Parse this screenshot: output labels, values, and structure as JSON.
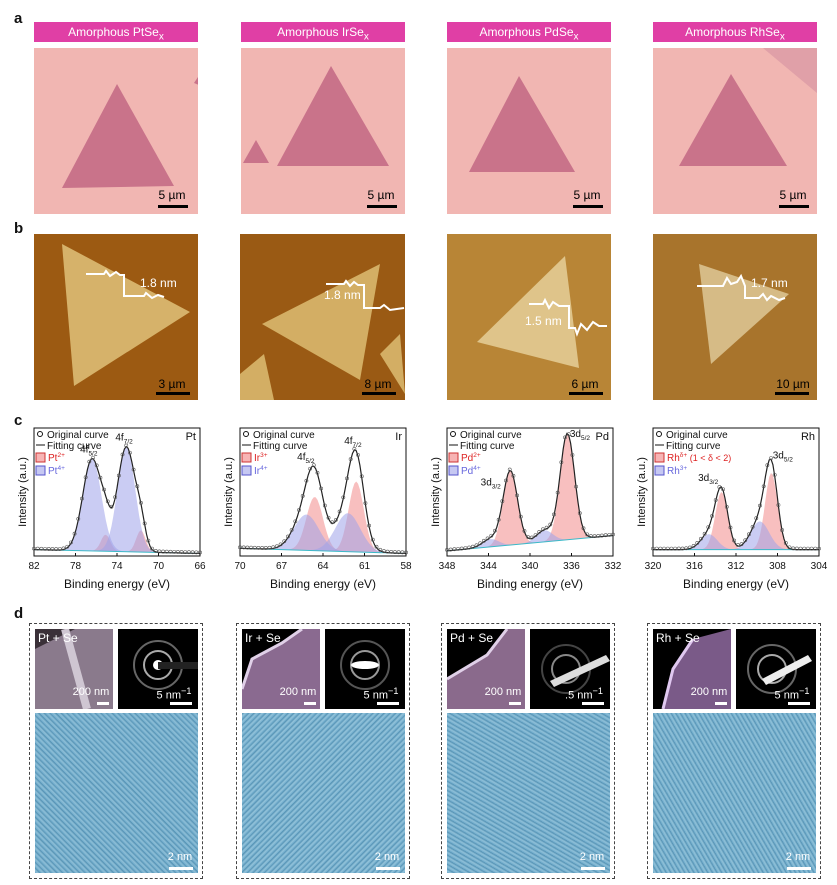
{
  "figure": {
    "panel_labels": [
      "a",
      "b",
      "c",
      "d"
    ],
    "row_a": {
      "samples": [
        {
          "banner": "Amorphous PtSe",
          "sub": "x",
          "scale": "5 µm"
        },
        {
          "banner": "Amorphous IrSe",
          "sub": "x",
          "scale": "5 µm"
        },
        {
          "banner": "Amorphous PdSe",
          "sub": "x",
          "scale": "5 µm"
        },
        {
          "banner": "Amorphous RhSe",
          "sub": "x",
          "scale": "5 µm"
        }
      ]
    },
    "row_b": {
      "samples": [
        {
          "height": "1.8 nm",
          "scale": "3 µm"
        },
        {
          "height": "1.8 nm",
          "scale": "8 µm"
        },
        {
          "height": "1.5 nm",
          "scale": "6 µm"
        },
        {
          "height": "1.7 nm",
          "scale": "10 µm"
        }
      ]
    },
    "row_d": {
      "samples": [
        {
          "tag": "Pt + Se",
          "sem_scale": "200 nm",
          "saed_scale": "5 nm",
          "saed_sup": "−1",
          "hr_scale": "2 nm"
        },
        {
          "tag": "Ir + Se",
          "sem_scale": "200 nm",
          "saed_scale": "5 nm",
          "saed_sup": "−1",
          "hr_scale": "2 nm"
        },
        {
          "tag": "Pd + Se",
          "sem_scale": "200 nm",
          "saed_scale": ".5 nm",
          "saed_sup": "−1",
          "hr_scale": "2 nm"
        },
        {
          "tag": "Rh + Se",
          "sem_scale": "200 nm",
          "saed_scale": "5 nm",
          "saed_sup": "−1",
          "hr_scale": "2 nm"
        }
      ]
    }
  },
  "chart_data": [
    {
      "type": "line",
      "element": "Pt",
      "xlabel": "Binding energy (eV)",
      "ylabel": "Intensity (a.u.)",
      "xlim": [
        82,
        66
      ],
      "reversed": true,
      "xticks": [
        82,
        78,
        74,
        70,
        66
      ],
      "legend": {
        "original": "Original curve",
        "fitting": "Fitting curve",
        "ox1": "Pt",
        "ox1_sup": "2+",
        "ox2": "Pt",
        "ox2_sup": "4+"
      },
      "peak_labels": [
        {
          "text": "4f",
          "sub": "5/2",
          "x": 76.4
        },
        {
          "text": "4f",
          "sub": "7/2",
          "x": 73.0
        }
      ],
      "series": [
        {
          "name": "Pt2+",
          "peaks": [
            {
              "center": 75.1,
              "height": 0.13,
              "width": 0.45
            },
            {
              "center": 71.7,
              "height": 0.17,
              "width": 0.45
            }
          ]
        },
        {
          "name": "Pt4+",
          "peaks": [
            {
              "center": 76.4,
              "height": 0.72,
              "width": 0.9
            },
            {
              "center": 73.1,
              "height": 0.82,
              "width": 0.85
            }
          ]
        }
      ],
      "baseline": [
        0.05,
        0.02
      ]
    },
    {
      "type": "line",
      "element": "Ir",
      "xlabel": "Binding energy (eV)",
      "ylabel": "Intensity (a.u.)",
      "xlim": [
        70,
        58
      ],
      "reversed": true,
      "xticks": [
        70,
        67,
        64,
        61,
        58
      ],
      "legend": {
        "original": "Original curve",
        "fitting": "Fitting curve",
        "ox1": "Ir",
        "ox1_sup": "3+",
        "ox2": "Ir",
        "ox2_sup": "4+"
      },
      "peak_labels": [
        {
          "text": "4f",
          "sub": "5/2",
          "x": 65.0
        },
        {
          "text": "4f",
          "sub": "7/2",
          "x": 61.6
        }
      ],
      "series": [
        {
          "name": "Ir3+",
          "peaks": [
            {
              "center": 64.6,
              "height": 0.42,
              "width": 0.6
            },
            {
              "center": 61.6,
              "height": 0.55,
              "width": 0.55
            }
          ]
        },
        {
          "name": "Ir4+",
          "peaks": [
            {
              "center": 65.2,
              "height": 0.28,
              "width": 0.9
            },
            {
              "center": 62.2,
              "height": 0.3,
              "width": 0.9
            }
          ]
        }
      ],
      "baseline": [
        0.06,
        0.02
      ]
    },
    {
      "type": "line",
      "element": "Pd",
      "xlabel": "Binding energy (eV)",
      "ylabel": "Intensity (a.u.)",
      "xlim": [
        348,
        332
      ],
      "reversed": true,
      "xticks": [
        348,
        344,
        340,
        336,
        332
      ],
      "legend": {
        "original": "Original curve",
        "fitting": "Fitting curve",
        "ox1": "Pd",
        "ox1_sup": "2+",
        "ox2": "Pd",
        "ox2_sup": "4+"
      },
      "peak_labels": [
        {
          "text": "3d",
          "sub": "3/2",
          "x": 343.6
        },
        {
          "text": "3d",
          "sub": "5/2",
          "x": 335.0
        }
      ],
      "series": [
        {
          "name": "Pd2+",
          "peaks": [
            {
              "center": 341.9,
              "height": 0.58,
              "width": 0.7
            },
            {
              "center": 336.4,
              "height": 0.83,
              "width": 0.7
            }
          ]
        },
        {
          "name": "Pd4+",
          "peaks": [
            {
              "center": 343.8,
              "height": 0.06,
              "width": 0.8
            },
            {
              "center": 338.6,
              "height": 0.09,
              "width": 0.8
            }
          ]
        }
      ],
      "baseline": [
        0.04,
        0.16
      ]
    },
    {
      "type": "line",
      "element": "Rh",
      "xlabel": "Binding energy (eV)",
      "ylabel": "Intensity (a.u.)",
      "xlim": [
        320,
        304
      ],
      "reversed": true,
      "xticks": [
        320,
        316,
        312,
        308,
        304
      ],
      "legend": {
        "original": "Original curve",
        "fitting": "Fitting curve",
        "ox1": "Rh",
        "ox1_sup": "δ+",
        "ox1_note": " (1 < δ < 2)",
        "ox2": "Rh",
        "ox2_sup": "3+"
      },
      "peak_labels": [
        {
          "text": "3d",
          "sub": "3/2",
          "x": 314.5
        },
        {
          "text": "3d",
          "sub": "5/2",
          "x": 307.3
        }
      ],
      "series": [
        {
          "name": "Rhδ+",
          "peaks": [
            {
              "center": 313.4,
              "height": 0.45,
              "width": 0.6
            },
            {
              "center": 308.6,
              "height": 0.6,
              "width": 0.6
            }
          ]
        },
        {
          "name": "Rh3+",
          "peaks": [
            {
              "center": 314.6,
              "height": 0.12,
              "width": 0.8
            },
            {
              "center": 309.7,
              "height": 0.22,
              "width": 0.9
            }
          ]
        }
      ],
      "baseline": [
        0.05,
        0.05
      ]
    }
  ]
}
